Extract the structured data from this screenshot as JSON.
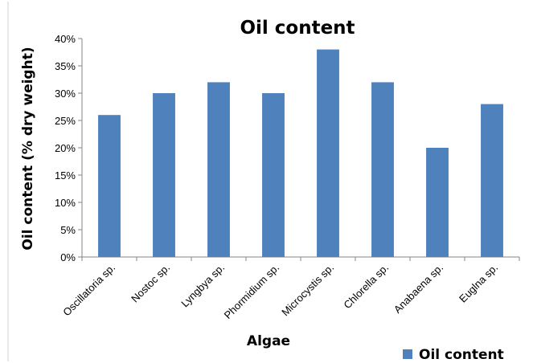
{
  "chart_data": {
    "type": "bar",
    "title": "Oil content",
    "xlabel": "Algae",
    "ylabel": "Oil content (% dry weight)",
    "categories": [
      "Oscillatoria sp.",
      "Nostoc sp.",
      "Lyngbya sp.",
      "Phormidium sp.",
      "Microcystis sp.",
      "Chlorella sp.",
      "Anabaena sp.",
      "Euglna sp."
    ],
    "series": [
      {
        "name": "Oil content",
        "values": [
          0.26,
          0.3,
          0.32,
          0.3,
          0.38,
          0.32,
          0.2,
          0.28
        ],
        "color": "#4F81BD"
      }
    ],
    "ylim": [
      0,
      0.4
    ],
    "yticks": [
      "0%",
      "5%",
      "10%",
      "15%",
      "20%",
      "25%",
      "30%",
      "35%",
      "40%"
    ],
    "grid": false,
    "legend": {
      "position": "bottom-right",
      "entries": [
        "Oil content"
      ]
    }
  }
}
